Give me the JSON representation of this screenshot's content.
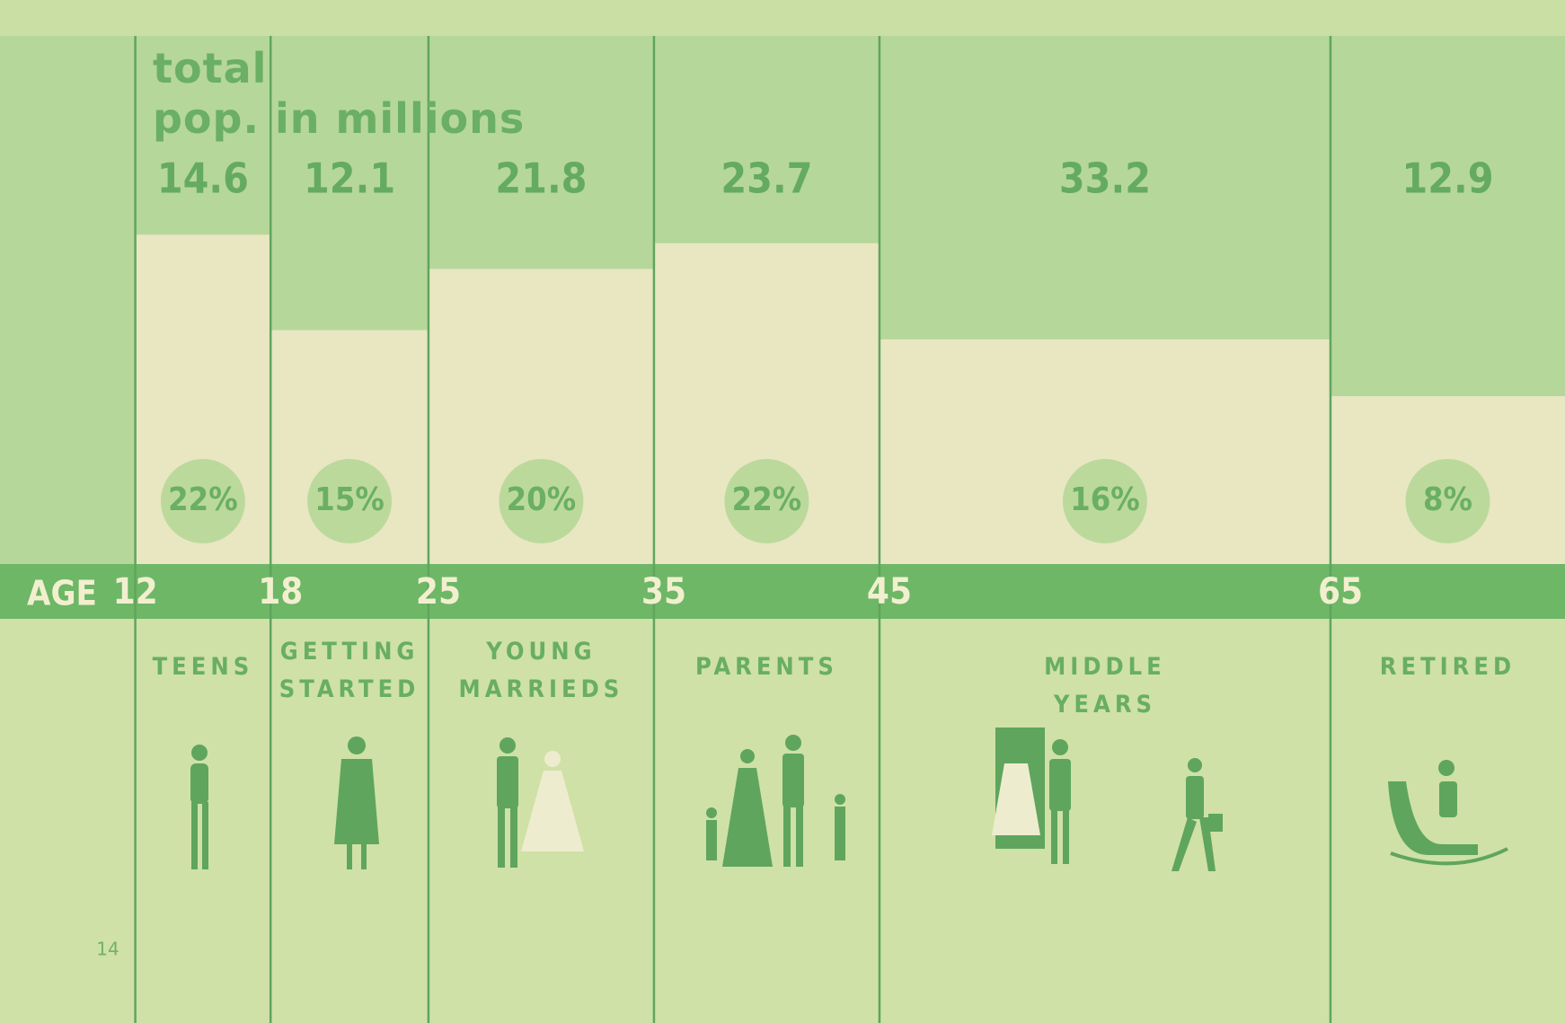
{
  "chart_data": {
    "type": "bar",
    "title": "total\npop. in millions",
    "x_label": "AGE",
    "xlim": [
      6,
      75.4
    ],
    "xticks": [
      12,
      18,
      25,
      35,
      45,
      65
    ],
    "categories": [
      "TEENS",
      "GETTING\nSTARTED",
      "YOUNG\nMARRIEDS",
      "PARENTS",
      "MIDDLE YEARS",
      "RETIRED"
    ],
    "values": [
      14.6,
      12.1,
      21.8,
      23.7,
      33.2,
      12.9
    ],
    "color": "#e8e7c2",
    "percent_values": [
      22,
      15,
      20,
      22,
      16,
      8
    ],
    "percent_labels": [
      "22%",
      "15%",
      "20%",
      "22%",
      "16%",
      "8%"
    ],
    "page_number": "14"
  }
}
